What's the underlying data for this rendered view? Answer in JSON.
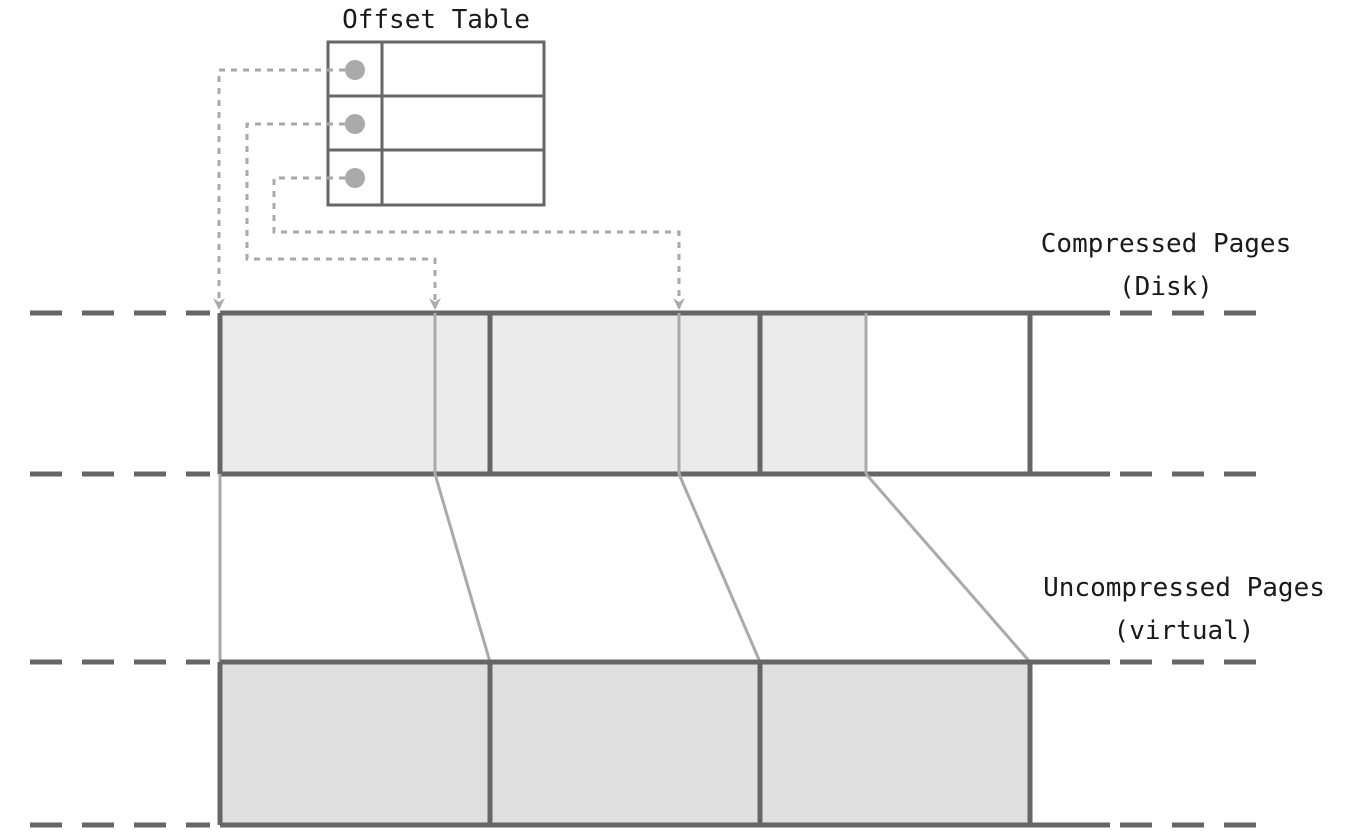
{
  "offset_table": {
    "title": "Offset Table",
    "row_count": 3
  },
  "compressed": {
    "label_line1": "Compressed Pages",
    "label_line2": "(Disk)"
  },
  "uncompressed": {
    "label_line1": "Uncompressed Pages",
    "label_line2": "(virtual)"
  },
  "colors": {
    "line": "#666666",
    "light_line": "#aaaaaa",
    "dot": "#aaaaaa",
    "compressed_fill": "#ebebeb",
    "uncompressed_fill": "#e0e0e0"
  }
}
